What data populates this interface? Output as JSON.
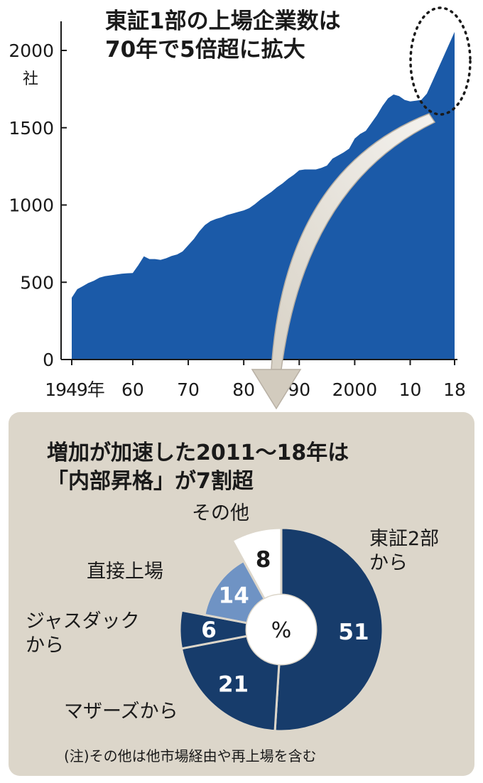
{
  "area_title": {
    "line1": "東証1部の上場企業数は",
    "line2": "70年で5倍超に拡大"
  },
  "pie_title": {
    "line1": "増加が加速した2011～18年は",
    "line2": "「内部昇格」が7割超"
  },
  "note": "(注)その他は他市場経由や再上場を含む",
  "center_label": "%",
  "labels": {
    "tosho2": [
      "東証2部",
      "から"
    ],
    "mothers": "マザーズから",
    "jasdaq": [
      "ジャスダック",
      "から"
    ],
    "direct": "直接上場",
    "other": "その他"
  },
  "colors": {
    "area": "#1b5aa8",
    "dark": "#173c6b",
    "light": "#6f93c4",
    "white": "#ffffff",
    "panel": "#dcd6ca"
  },
  "chart_data": [
    {
      "type": "area",
      "title": "東証1部の上場企業数は 70年で5倍超に拡大",
      "ylabel_unit": "社",
      "ylim": [
        0,
        2200
      ],
      "y_ticks": [
        0,
        500,
        1000,
        1500,
        2000
      ],
      "x_tick_labels": [
        "1949年",
        "60",
        "70",
        "80",
        "90",
        "2000",
        "10",
        "18"
      ],
      "x_tick_years": [
        1949,
        1960,
        1970,
        1980,
        1990,
        2000,
        2010,
        2018
      ],
      "x": [
        1949,
        1950,
        1951,
        1952,
        1953,
        1954,
        1955,
        1956,
        1957,
        1958,
        1959,
        1960,
        1961,
        1962,
        1963,
        1964,
        1965,
        1966,
        1967,
        1968,
        1969,
        1970,
        1971,
        1972,
        1973,
        1974,
        1975,
        1976,
        1977,
        1978,
        1979,
        1980,
        1981,
        1982,
        1983,
        1984,
        1985,
        1986,
        1987,
        1988,
        1989,
        1990,
        1991,
        1992,
        1993,
        1994,
        1995,
        1996,
        1997,
        1998,
        1999,
        2000,
        2001,
        2002,
        2003,
        2004,
        2005,
        2006,
        2007,
        2008,
        2009,
        2010,
        2011,
        2012,
        2013,
        2014,
        2015,
        2016,
        2017,
        2018
      ],
      "values": [
        400,
        455,
        475,
        495,
        510,
        530,
        540,
        545,
        550,
        555,
        558,
        560,
        610,
        668,
        650,
        650,
        645,
        655,
        670,
        680,
        700,
        740,
        780,
        830,
        870,
        895,
        910,
        920,
        935,
        945,
        955,
        965,
        980,
        1005,
        1035,
        1060,
        1085,
        1115,
        1140,
        1170,
        1195,
        1225,
        1230,
        1230,
        1230,
        1240,
        1255,
        1300,
        1320,
        1340,
        1365,
        1430,
        1460,
        1480,
        1530,
        1580,
        1640,
        1690,
        1715,
        1705,
        1680,
        1670,
        1675,
        1680,
        1720,
        1800,
        1880,
        1960,
        2040,
        2120
      ]
    },
    {
      "type": "pie",
      "title": "増加が加速した2011～18年は 「内部昇格」が7割超",
      "unit": "%",
      "categories": [
        "東証2部から",
        "マザーズから",
        "ジャスダックから",
        "直接上場",
        "その他"
      ],
      "values": [
        51,
        21,
        6,
        14,
        8
      ]
    }
  ]
}
